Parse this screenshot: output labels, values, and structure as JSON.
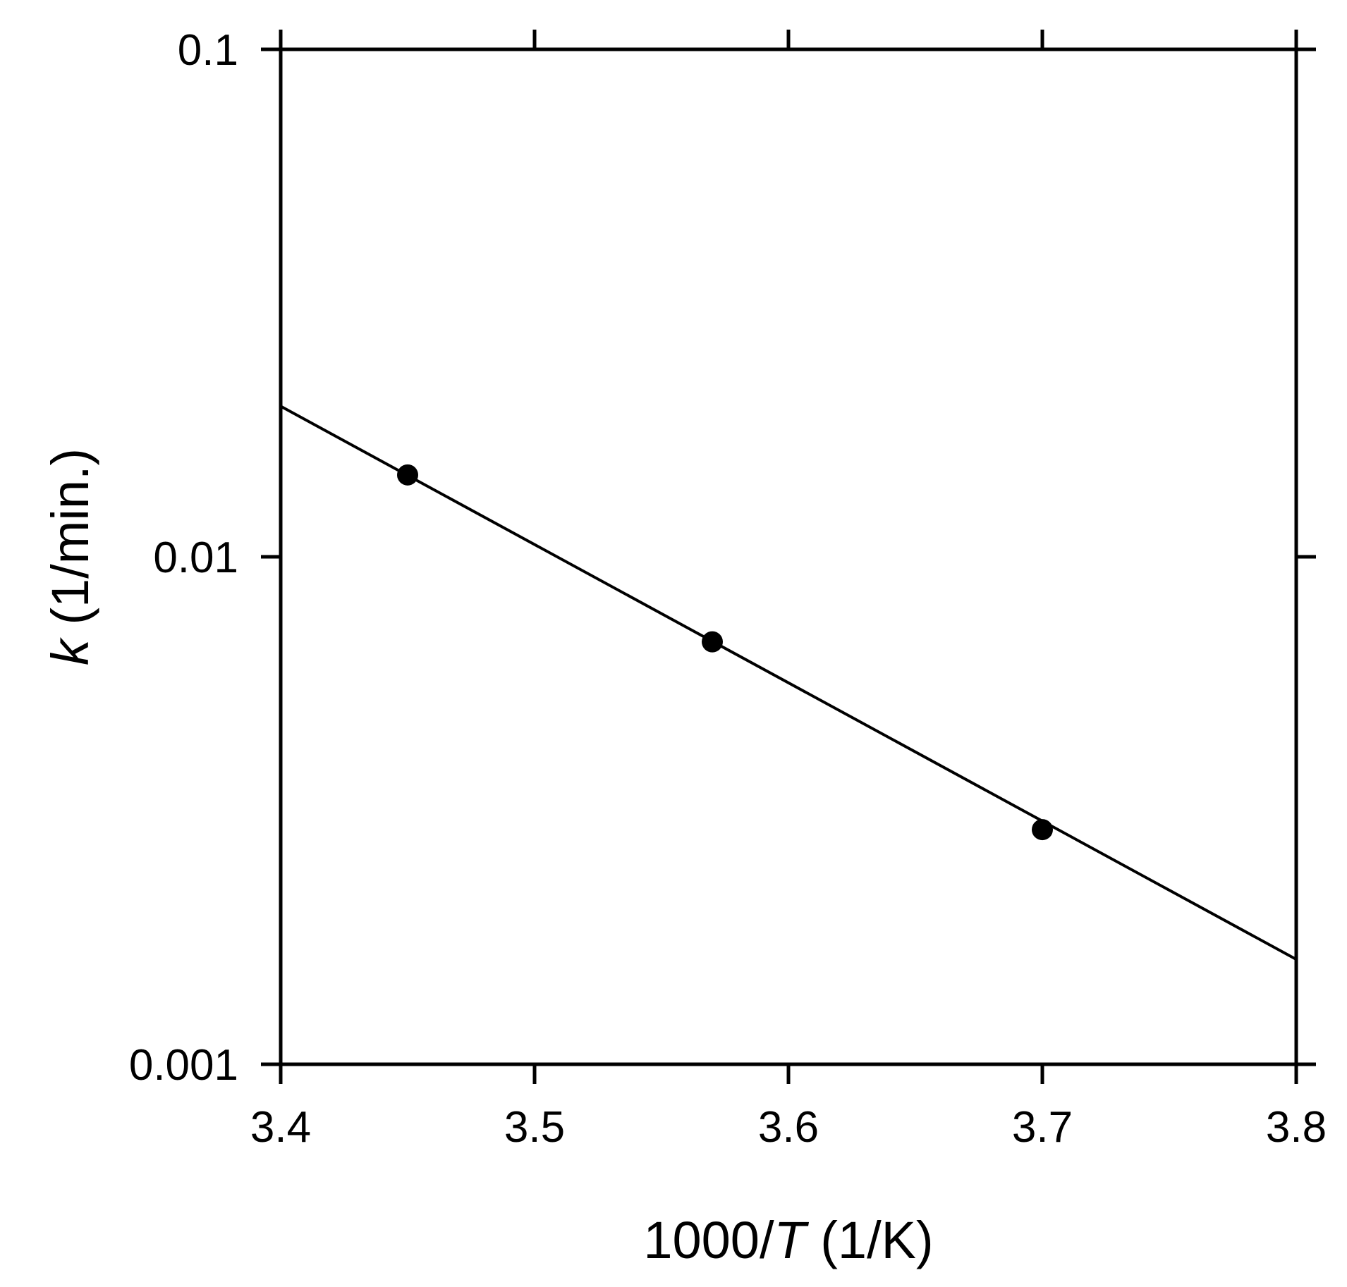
{
  "chart_data": {
    "type": "scatter",
    "xlabel_parts": [
      "1000/",
      "T",
      " (1/K)"
    ],
    "ylabel_parts": [
      "k",
      " (1/min.)"
    ],
    "xlim": [
      3.4,
      3.8
    ],
    "ylim": [
      0.001,
      0.1
    ],
    "y_scale": "log",
    "x_ticks": [
      3.4,
      3.5,
      3.6,
      3.7,
      3.8
    ],
    "x_tick_labels": [
      "3.4",
      "3.5",
      "3.6",
      "3.7",
      "3.8"
    ],
    "y_ticks": [
      0.001,
      0.01,
      0.1
    ],
    "y_tick_labels": [
      "0.001",
      "0.01",
      "0.1"
    ],
    "grid": false,
    "series": [
      {
        "type": "scatter",
        "x": [
          3.45,
          3.57,
          3.7
        ],
        "y": [
          0.0145,
          0.0068,
          0.0029
        ]
      }
    ],
    "fit_line": {
      "x": [
        3.4,
        3.8
      ],
      "y": [
        0.0198,
        0.00161
      ]
    },
    "color": "#000000"
  }
}
